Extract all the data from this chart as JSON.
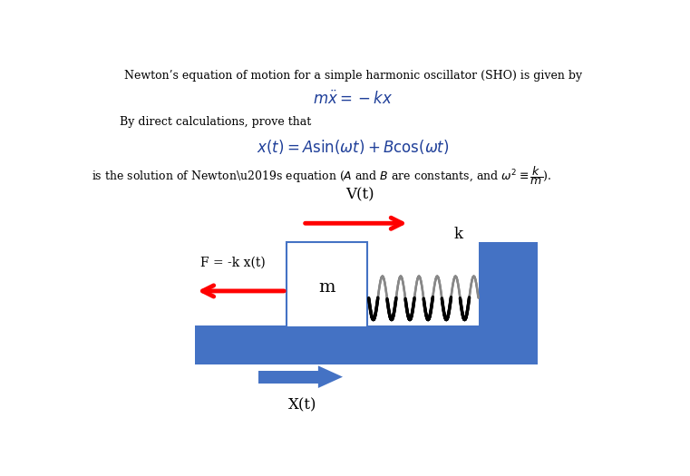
{
  "title_text": "Newton’s equation of motion for a simple harmonic oscillator (SHO) is given by",
  "label_vt": "V(t)",
  "label_xt": "X(t)",
  "label_m": "m",
  "label_k": "k",
  "label_F": "F = -k x(t)",
  "blue_color": "#4472C4",
  "red_color": "#FF0000",
  "text_color": "#000000",
  "math_color": "#1F3F99",
  "bg_color": "#FFFFFF",
  "n_coils": 6
}
